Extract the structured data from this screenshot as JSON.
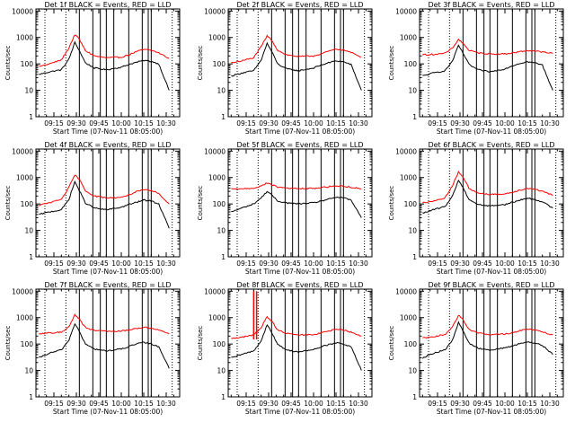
{
  "figure": {
    "background": "#ffffff",
    "colors": {
      "axes": "#000000",
      "events": "#000000",
      "lld": "#ff0000"
    }
  },
  "chart_data": [
    {
      "type": "line",
      "title": "Det 1f BLACK = Events, RED = LLD",
      "xlabel": "Start Time (07-Nov-11 08:05:00)",
      "ylabel": "Counts/sec",
      "x_tick_labels": [
        "09:15",
        "09:30",
        "09:45",
        "10:00",
        "10:15",
        "10:30"
      ],
      "y_tick_labels": [
        "1",
        "10",
        "100",
        "1000",
        "10000"
      ],
      "ylim": [
        1,
        12000
      ],
      "y_scale": "log",
      "x": [
        "09:05",
        "09:12",
        "09:20",
        "09:25",
        "09:29",
        "09:32",
        "09:36",
        "09:42",
        "09:50",
        "10:00",
        "10:05",
        "10:10",
        "10:15",
        "10:20",
        "10:25",
        "10:32"
      ],
      "series": [
        {
          "name": "Events",
          "color": "#000000",
          "values": [
            40,
            50,
            60,
            150,
            650,
            320,
            110,
            70,
            60,
            75,
            95,
            115,
            135,
            125,
            100,
            10
          ]
        },
        {
          "name": "LLD",
          "color": "#ff0000",
          "values": [
            80,
            100,
            140,
            400,
            1300,
            850,
            320,
            200,
            170,
            180,
            220,
            290,
            350,
            330,
            260,
            160
          ]
        }
      ],
      "vertical_lines_solid": [
        "09:32",
        "09:41",
        "09:46",
        "09:50",
        "09:55",
        "10:05",
        "10:14",
        "10:18",
        "10:20"
      ],
      "vertical_lines_dotted": [
        "09:09",
        "09:23",
        "10:34"
      ]
    },
    {
      "type": "line",
      "title": "Det 2f BLACK = Events, RED = LLD",
      "xlabel": "Start Time (07-Nov-11 08:05:00)",
      "ylabel": "Counts/sec",
      "x_tick_labels": [
        "09:15",
        "09:30",
        "09:45",
        "10:00",
        "10:15",
        "10:30"
      ],
      "y_tick_labels": [
        "1",
        "10",
        "100",
        "1000",
        "10000"
      ],
      "ylim": [
        1,
        12000
      ],
      "y_scale": "log",
      "x": [
        "09:05",
        "09:12",
        "09:20",
        "09:25",
        "09:29",
        "09:32",
        "09:36",
        "09:42",
        "09:50",
        "10:00",
        "10:05",
        "10:10",
        "10:15",
        "10:20",
        "10:25",
        "10:32"
      ],
      "series": [
        {
          "name": "Events",
          "color": "#000000",
          "values": [
            35,
            45,
            55,
            140,
            600,
            300,
            100,
            65,
            55,
            70,
            90,
            110,
            130,
            120,
            95,
            10
          ]
        },
        {
          "name": "LLD",
          "color": "#ff0000",
          "values": [
            110,
            130,
            170,
            450,
            1150,
            800,
            330,
            220,
            190,
            200,
            240,
            300,
            360,
            340,
            270,
            180
          ]
        }
      ],
      "vertical_lines_solid": [
        "09:32",
        "09:41",
        "09:46",
        "09:50",
        "09:55",
        "10:05",
        "10:14",
        "10:18",
        "10:20"
      ],
      "vertical_lines_dotted": [
        "09:09",
        "09:23",
        "10:34"
      ]
    },
    {
      "type": "line",
      "title": "Det 3f BLACK = Events, RED = LLD",
      "xlabel": "Start Time (07-Nov-11 08:05:00)",
      "ylabel": "Counts/sec",
      "x_tick_labels": [
        "09:15",
        "09:30",
        "09:45",
        "10:00",
        "10:15",
        "10:30"
      ],
      "y_tick_labels": [
        "1",
        "10",
        "100",
        "1000",
        "10000"
      ],
      "ylim": [
        1,
        12000
      ],
      "y_scale": "log",
      "x": [
        "09:05",
        "09:12",
        "09:20",
        "09:25",
        "09:29",
        "09:32",
        "09:36",
        "09:42",
        "09:50",
        "10:00",
        "10:05",
        "10:10",
        "10:15",
        "10:20",
        "10:25",
        "10:32"
      ],
      "series": [
        {
          "name": "Events",
          "color": "#000000",
          "values": [
            35,
            45,
            55,
            130,
            500,
            260,
            95,
            60,
            50,
            65,
            85,
            105,
            120,
            110,
            90,
            10
          ]
        },
        {
          "name": "LLD",
          "color": "#ff0000",
          "values": [
            220,
            230,
            250,
            400,
            850,
            600,
            330,
            260,
            240,
            240,
            260,
            290,
            320,
            310,
            280,
            250
          ]
        }
      ],
      "vertical_lines_solid": [
        "09:32",
        "09:41",
        "09:46",
        "09:50",
        "09:55",
        "10:05",
        "10:14",
        "10:18",
        "10:20"
      ],
      "vertical_lines_dotted": [
        "09:09",
        "09:23",
        "10:34"
      ]
    },
    {
      "type": "line",
      "title": "Det 4f BLACK = Events, RED = LLD",
      "xlabel": "Start Time (07-Nov-11 08:05:00)",
      "ylabel": "Counts/sec",
      "x_tick_labels": [
        "09:15",
        "09:30",
        "09:45",
        "10:00",
        "10:15",
        "10:30"
      ],
      "y_tick_labels": [
        "1",
        "10",
        "100",
        "1000",
        "10000"
      ],
      "ylim": [
        1,
        12000
      ],
      "y_scale": "log",
      "x": [
        "09:05",
        "09:12",
        "09:20",
        "09:25",
        "09:29",
        "09:32",
        "09:36",
        "09:42",
        "09:50",
        "10:00",
        "10:05",
        "10:10",
        "10:15",
        "10:20",
        "10:25",
        "10:32"
      ],
      "series": [
        {
          "name": "Events",
          "color": "#000000",
          "values": [
            40,
            50,
            60,
            150,
            700,
            320,
            110,
            70,
            60,
            75,
            95,
            115,
            140,
            130,
            100,
            12
          ]
        },
        {
          "name": "LLD",
          "color": "#ff0000",
          "values": [
            90,
            110,
            150,
            420,
            1250,
            850,
            320,
            200,
            170,
            180,
            220,
            290,
            340,
            320,
            250,
            100
          ]
        }
      ],
      "vertical_lines_solid": [
        "09:32",
        "09:41",
        "09:46",
        "09:50",
        "09:55",
        "10:05",
        "10:14",
        "10:18",
        "10:20"
      ],
      "vertical_lines_dotted": [
        "09:09",
        "09:23",
        "10:34"
      ]
    },
    {
      "type": "line",
      "title": "Det 5f BLACK = Events, RED = LLD",
      "xlabel": "Start Time (07-Nov-11 08:05:00)",
      "ylabel": "Counts/sec",
      "x_tick_labels": [
        "09:15",
        "09:30",
        "09:45",
        "10:00",
        "10:15",
        "10:30"
      ],
      "y_tick_labels": [
        "1",
        "10",
        "100",
        "1000",
        "10000"
      ],
      "ylim": [
        1,
        12000
      ],
      "y_scale": "log",
      "x": [
        "09:05",
        "09:12",
        "09:20",
        "09:25",
        "09:29",
        "09:32",
        "09:36",
        "09:42",
        "09:50",
        "10:00",
        "10:05",
        "10:10",
        "10:15",
        "10:20",
        "10:25",
        "10:32"
      ],
      "series": [
        {
          "name": "Events",
          "color": "#000000",
          "values": [
            50,
            70,
            100,
            170,
            300,
            220,
            130,
            110,
            100,
            110,
            130,
            150,
            180,
            170,
            140,
            30
          ]
        },
        {
          "name": "LLD",
          "color": "#ff0000",
          "values": [
            370,
            380,
            400,
            480,
            620,
            540,
            440,
            400,
            380,
            390,
            420,
            450,
            480,
            470,
            430,
            380
          ]
        }
      ],
      "vertical_lines_solid": [
        "09:32",
        "09:41",
        "09:46",
        "09:50",
        "09:55",
        "10:05",
        "10:14",
        "10:18",
        "10:20"
      ],
      "vertical_lines_dotted": [
        "09:09",
        "09:23",
        "10:34"
      ]
    },
    {
      "type": "line",
      "title": "Det 6f BLACK = Events, RED = LLD",
      "xlabel": "Start Time (07-Nov-11 08:05:00)",
      "ylabel": "Counts/sec",
      "x_tick_labels": [
        "09:15",
        "09:30",
        "09:45",
        "10:00",
        "10:15",
        "10:30"
      ],
      "y_tick_labels": [
        "1",
        "10",
        "100",
        "1000",
        "10000"
      ],
      "ylim": [
        1,
        12000
      ],
      "y_scale": "log",
      "x": [
        "09:05",
        "09:12",
        "09:20",
        "09:25",
        "09:29",
        "09:32",
        "09:36",
        "09:42",
        "09:50",
        "10:00",
        "10:05",
        "10:10",
        "10:15",
        "10:20",
        "10:25",
        "10:32"
      ],
      "series": [
        {
          "name": "Events",
          "color": "#000000",
          "values": [
            45,
            60,
            80,
            200,
            800,
            420,
            150,
            95,
            85,
            95,
            115,
            140,
            165,
            150,
            120,
            70
          ]
        },
        {
          "name": "LLD",
          "color": "#ff0000",
          "values": [
            110,
            130,
            170,
            500,
            1600,
            1050,
            400,
            260,
            230,
            240,
            280,
            340,
            390,
            370,
            300,
            210
          ]
        }
      ],
      "vertical_lines_solid": [
        "09:32",
        "09:41",
        "09:46",
        "09:50",
        "09:55",
        "10:05",
        "10:14",
        "10:18",
        "10:20"
      ],
      "vertical_lines_dotted": [
        "09:09",
        "09:23",
        "10:34"
      ]
    },
    {
      "type": "line",
      "title": "Det 7f BLACK = Events, RED = LLD",
      "xlabel": "Start Time (07-Nov-11 08:05:00)",
      "ylabel": "Counts/sec",
      "x_tick_labels": [
        "09:15",
        "09:30",
        "09:45",
        "10:00",
        "10:15",
        "10:30"
      ],
      "y_tick_labels": [
        "1",
        "10",
        "100",
        "1000",
        "10000"
      ],
      "ylim": [
        1,
        12000
      ],
      "y_scale": "log",
      "x": [
        "09:05",
        "09:12",
        "09:20",
        "09:25",
        "09:29",
        "09:32",
        "09:36",
        "09:42",
        "09:50",
        "10:00",
        "10:05",
        "10:10",
        "10:15",
        "10:20",
        "10:25",
        "10:32"
      ],
      "series": [
        {
          "name": "Events",
          "color": "#000000",
          "values": [
            30,
            45,
            60,
            140,
            600,
            300,
            100,
            65,
            55,
            65,
            80,
            100,
            115,
            100,
            80,
            12
          ]
        },
        {
          "name": "LLD",
          "color": "#ff0000",
          "values": [
            250,
            260,
            280,
            450,
            1300,
            880,
            420,
            330,
            300,
            310,
            340,
            390,
            430,
            400,
            340,
            250
          ]
        }
      ],
      "vertical_lines_solid": [
        "09:32",
        "09:41",
        "09:46",
        "09:50",
        "09:55",
        "10:05",
        "10:14",
        "10:18",
        "10:20"
      ],
      "vertical_lines_dotted": [
        "09:09",
        "09:23",
        "10:34"
      ]
    },
    {
      "type": "line",
      "title": "Det 8f BLACK = Events, RED = LLD",
      "xlabel": "Start Time (07-Nov-11 08:05:00)",
      "ylabel": "Counts/sec",
      "x_tick_labels": [
        "09:15",
        "09:30",
        "09:45",
        "10:00",
        "10:15",
        "10:30"
      ],
      "y_tick_labels": [
        "1",
        "10",
        "100",
        "1000",
        "10000"
      ],
      "ylim": [
        1,
        12000
      ],
      "y_scale": "log",
      "x": [
        "09:05",
        "09:12",
        "09:20",
        "09:25",
        "09:29",
        "09:32",
        "09:36",
        "09:42",
        "09:50",
        "10:00",
        "10:05",
        "10:10",
        "10:15",
        "10:20",
        "10:25",
        "10:32"
      ],
      "series": [
        {
          "name": "Events",
          "color": "#000000",
          "values": [
            30,
            40,
            55,
            130,
            550,
            280,
            95,
            60,
            50,
            62,
            78,
            95,
            110,
            100,
            80,
            10
          ]
        },
        {
          "name": "LLD",
          "color": "#ff0000",
          "values": [
            160,
            180,
            220,
            420,
            1100,
            750,
            340,
            250,
            220,
            230,
            260,
            310,
            360,
            340,
            280,
            200
          ]
        }
      ],
      "spikes": [
        {
          "x": "09:20",
          "y_bottom": 150,
          "y_top": 10000
        },
        {
          "x": "09:22",
          "y_bottom": 150,
          "y_top": 10000
        }
      ],
      "vertical_lines_solid": [
        "09:32",
        "09:41",
        "09:46",
        "09:50",
        "09:55",
        "10:05",
        "10:14",
        "10:18",
        "10:20"
      ],
      "vertical_lines_dotted": [
        "09:09",
        "09:23",
        "10:34"
      ]
    },
    {
      "type": "line",
      "title": "Det 9f BLACK = Events, RED = LLD",
      "xlabel": "Start Time (07-Nov-11 08:05:00)",
      "ylabel": "Counts/sec",
      "x_tick_labels": [
        "09:15",
        "09:30",
        "09:45",
        "10:00",
        "10:15",
        "10:30"
      ],
      "y_tick_labels": [
        "1",
        "10",
        "100",
        "1000",
        "10000"
      ],
      "ylim": [
        1,
        12000
      ],
      "y_scale": "log",
      "x": [
        "09:05",
        "09:12",
        "09:20",
        "09:25",
        "09:29",
        "09:32",
        "09:36",
        "09:42",
        "09:50",
        "10:00",
        "10:05",
        "10:10",
        "10:15",
        "10:20",
        "10:25",
        "10:32"
      ],
      "series": [
        {
          "name": "Events",
          "color": "#000000",
          "values": [
            30,
            45,
            60,
            140,
            650,
            320,
            110,
            70,
            60,
            70,
            85,
            105,
            120,
            110,
            90,
            40
          ]
        },
        {
          "name": "LLD",
          "color": "#ff0000",
          "values": [
            170,
            190,
            230,
            450,
            1250,
            850,
            360,
            260,
            230,
            240,
            270,
            320,
            370,
            350,
            290,
            220
          ]
        }
      ],
      "vertical_lines_solid": [
        "09:32",
        "09:41",
        "09:46",
        "09:50",
        "09:55",
        "10:05",
        "10:14",
        "10:18",
        "10:20"
      ],
      "vertical_lines_dotted": [
        "09:09",
        "09:23",
        "10:34"
      ]
    }
  ]
}
